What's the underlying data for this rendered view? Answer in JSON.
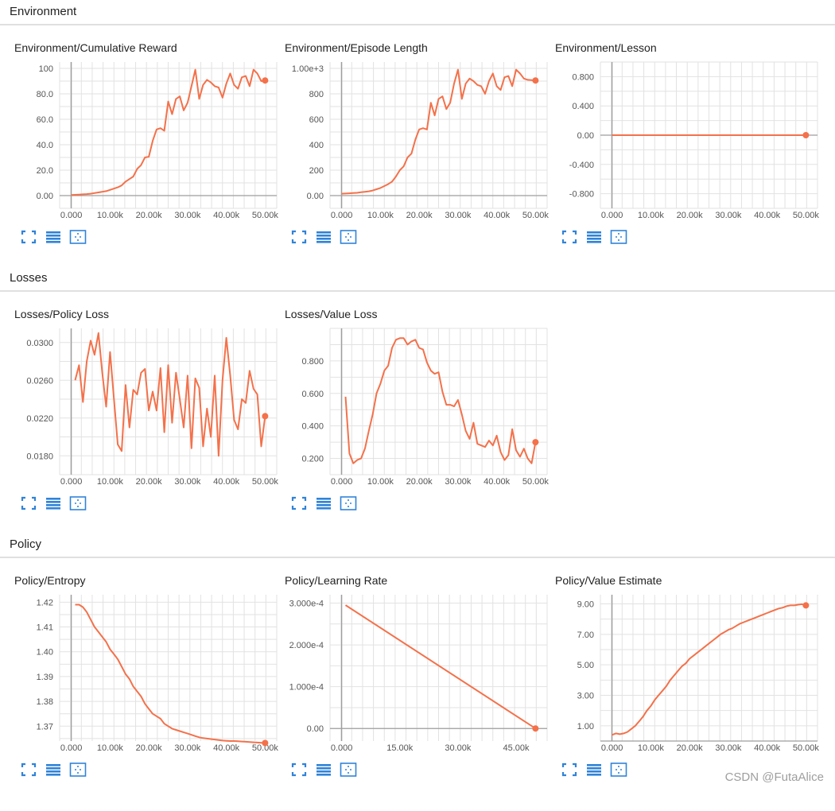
{
  "sections": [
    {
      "label": "Environment"
    },
    {
      "label": "Losses"
    },
    {
      "label": "Policy"
    }
  ],
  "watermark": "CSDN @FutaAlice",
  "colors": {
    "series": "#f4714a",
    "grid": "#e2e2e2",
    "axis": "#9e9e9e",
    "button": "#3083d8",
    "divider": "#e0e0e0"
  },
  "icons": [
    "fullscreen-icon",
    "list-lines-icon",
    "fit-domain-icon"
  ],
  "chart_data": [
    {
      "type": "line",
      "title": "Environment/Cumulative Reward",
      "x": [
        0,
        1000,
        2000,
        3000,
        4000,
        5000,
        6000,
        7000,
        8000,
        9000,
        10000,
        11000,
        12000,
        13000,
        14000,
        15000,
        16000,
        17000,
        18000,
        19000,
        20000,
        21000,
        22000,
        23000,
        24000,
        25000,
        26000,
        27000,
        28000,
        29000,
        30000,
        31000,
        32000,
        33000,
        34000,
        35000,
        36000,
        37000,
        38000,
        39000,
        40000,
        41000,
        42000,
        43000,
        44000,
        45000,
        46000,
        47000,
        48000,
        49000,
        50000
      ],
      "y": [
        0.5,
        0.6,
        0.8,
        1.0,
        1.2,
        1.5,
        2.0,
        2.5,
        3.0,
        3.5,
        4.5,
        5.5,
        6.5,
        8.0,
        11.0,
        13.0,
        15.0,
        21.0,
        24.0,
        30.0,
        30.5,
        43.0,
        52.0,
        53.0,
        51.0,
        74.0,
        64.0,
        76.0,
        78.0,
        67.0,
        73.0,
        86.0,
        99.0,
        76.0,
        87.0,
        91.0,
        89.0,
        86.0,
        85.0,
        77.0,
        88.0,
        96.0,
        87.0,
        84.0,
        93.0,
        94.0,
        86.0,
        99.0,
        96.0,
        90.0,
        90.5
      ],
      "xticks": [
        "0.000",
        "10.00k",
        "20.00k",
        "30.00k",
        "40.00k",
        "50.00k"
      ],
      "xtick_values": [
        0,
        10000,
        20000,
        30000,
        40000,
        50000
      ],
      "yticks": [
        "0.00",
        "20.0",
        "40.0",
        "60.0",
        "80.0",
        "100"
      ],
      "ytick_values": [
        0,
        20,
        40,
        60,
        80,
        100
      ],
      "xlim": [
        -3000,
        53000
      ],
      "ylim": [
        -10,
        105
      ],
      "grid": true
    },
    {
      "type": "line",
      "title": "Environment/Episode Length",
      "x": [
        0,
        1000,
        2000,
        3000,
        4000,
        5000,
        6000,
        7000,
        8000,
        9000,
        10000,
        11000,
        12000,
        13000,
        14000,
        15000,
        16000,
        17000,
        18000,
        19000,
        20000,
        21000,
        22000,
        23000,
        24000,
        25000,
        26000,
        27000,
        28000,
        29000,
        30000,
        31000,
        32000,
        33000,
        34000,
        35000,
        36000,
        37000,
        38000,
        39000,
        40000,
        41000,
        42000,
        43000,
        44000,
        45000,
        46000,
        47000,
        48000,
        49000,
        50000
      ],
      "y": [
        15,
        16,
        18,
        20,
        22,
        26,
        30,
        34,
        40,
        50,
        60,
        75,
        90,
        110,
        150,
        200,
        230,
        300,
        330,
        440,
        520,
        530,
        520,
        730,
        630,
        760,
        780,
        680,
        730,
        880,
        990,
        760,
        880,
        920,
        900,
        870,
        860,
        800,
        900,
        960,
        860,
        830,
        930,
        940,
        860,
        990,
        960,
        920,
        910,
        908,
        905
      ],
      "xticks": [
        "0.000",
        "10.00k",
        "20.00k",
        "30.00k",
        "40.00k",
        "50.00k"
      ],
      "xtick_values": [
        0,
        10000,
        20000,
        30000,
        40000,
        50000
      ],
      "yticks": [
        "0.00",
        "200",
        "400",
        "600",
        "800",
        "1.00e+3"
      ],
      "ytick_values": [
        0,
        200,
        400,
        600,
        800,
        1000
      ],
      "xlim": [
        -3000,
        53000
      ],
      "ylim": [
        -100,
        1050
      ],
      "grid": true
    },
    {
      "type": "line",
      "title": "Environment/Lesson",
      "x": [
        0,
        50000
      ],
      "y": [
        0,
        0
      ],
      "xticks": [
        "0.000",
        "10.00k",
        "20.00k",
        "30.00k",
        "40.00k",
        "50.00k"
      ],
      "xtick_values": [
        0,
        10000,
        20000,
        30000,
        40000,
        50000
      ],
      "yticks": [
        "-0.800",
        "-0.400",
        "0.00",
        "0.400",
        "0.800"
      ],
      "ytick_values": [
        -0.8,
        -0.4,
        0,
        0.4,
        0.8
      ],
      "xlim": [
        -3000,
        53000
      ],
      "ylim": [
        -1.0,
        1.0
      ],
      "grid": true
    },
    {
      "type": "line",
      "title": "Losses/Policy Loss",
      "x": [
        1000,
        2000,
        3000,
        4000,
        5000,
        6000,
        7000,
        8000,
        9000,
        10000,
        11000,
        12000,
        13000,
        14000,
        15000,
        16000,
        17000,
        18000,
        19000,
        20000,
        21000,
        22000,
        23000,
        24000,
        25000,
        26000,
        27000,
        28000,
        29000,
        30000,
        31000,
        32000,
        33000,
        34000,
        35000,
        36000,
        37000,
        38000,
        39000,
        40000,
        41000,
        42000,
        43000,
        44000,
        45000,
        46000,
        47000,
        48000,
        49000,
        50000
      ],
      "y": [
        0.026,
        0.0276,
        0.0237,
        0.028,
        0.0302,
        0.0287,
        0.031,
        0.0268,
        0.0232,
        0.029,
        0.024,
        0.0192,
        0.0185,
        0.0255,
        0.021,
        0.025,
        0.0245,
        0.0268,
        0.0272,
        0.0228,
        0.0248,
        0.0228,
        0.0273,
        0.0205,
        0.0276,
        0.0215,
        0.0268,
        0.024,
        0.021,
        0.0265,
        0.0188,
        0.0262,
        0.0252,
        0.019,
        0.023,
        0.02,
        0.0265,
        0.018,
        0.026,
        0.0305,
        0.0265,
        0.0218,
        0.0208,
        0.024,
        0.0236,
        0.027,
        0.0251,
        0.0245,
        0.019,
        0.0222
      ],
      "xticks": [
        "0.000",
        "10.00k",
        "20.00k",
        "30.00k",
        "40.00k",
        "50.00k"
      ],
      "xtick_values": [
        0,
        10000,
        20000,
        30000,
        40000,
        50000
      ],
      "yticks": [
        "0.0180",
        "0.0220",
        "0.0260",
        "0.0300"
      ],
      "ytick_values": [
        0.018,
        0.022,
        0.026,
        0.03
      ],
      "xlim": [
        -3000,
        53000
      ],
      "ylim": [
        0.016,
        0.0315
      ],
      "grid": true
    },
    {
      "type": "line",
      "title": "Losses/Value Loss",
      "x": [
        1000,
        2000,
        3000,
        4000,
        5000,
        6000,
        7000,
        8000,
        9000,
        10000,
        11000,
        12000,
        13000,
        14000,
        15000,
        16000,
        17000,
        18000,
        19000,
        20000,
        21000,
        22000,
        23000,
        24000,
        25000,
        26000,
        27000,
        28000,
        29000,
        30000,
        31000,
        32000,
        33000,
        34000,
        35000,
        36000,
        37000,
        38000,
        39000,
        40000,
        41000,
        42000,
        43000,
        44000,
        45000,
        46000,
        47000,
        48000,
        49000,
        50000
      ],
      "y": [
        0.58,
        0.23,
        0.17,
        0.19,
        0.2,
        0.26,
        0.37,
        0.47,
        0.6,
        0.66,
        0.74,
        0.77,
        0.88,
        0.93,
        0.94,
        0.94,
        0.9,
        0.92,
        0.93,
        0.88,
        0.87,
        0.79,
        0.74,
        0.72,
        0.73,
        0.61,
        0.53,
        0.53,
        0.52,
        0.56,
        0.47,
        0.37,
        0.32,
        0.42,
        0.29,
        0.28,
        0.27,
        0.31,
        0.28,
        0.34,
        0.24,
        0.19,
        0.22,
        0.38,
        0.25,
        0.21,
        0.26,
        0.2,
        0.17,
        0.3
      ],
      "xticks": [
        "0.000",
        "10.00k",
        "20.00k",
        "30.00k",
        "40.00k",
        "50.00k"
      ],
      "xtick_values": [
        0,
        10000,
        20000,
        30000,
        40000,
        50000
      ],
      "yticks": [
        "0.200",
        "0.400",
        "0.600",
        "0.800"
      ],
      "ytick_values": [
        0.2,
        0.4,
        0.6,
        0.8
      ],
      "xlim": [
        -3000,
        53000
      ],
      "ylim": [
        0.1,
        1.0
      ],
      "grid": true
    },
    {
      "type": "line",
      "title": "Policy/Entropy",
      "x": [
        1000,
        2000,
        3000,
        4000,
        5000,
        6000,
        7000,
        8000,
        9000,
        10000,
        11000,
        12000,
        13000,
        14000,
        15000,
        16000,
        17000,
        18000,
        19000,
        20000,
        21000,
        22000,
        23000,
        24000,
        25000,
        26000,
        27000,
        28000,
        29000,
        30000,
        31000,
        32000,
        33000,
        34000,
        35000,
        36000,
        37000,
        38000,
        39000,
        40000,
        41000,
        42000,
        43000,
        44000,
        45000,
        46000,
        47000,
        48000,
        49000,
        50000
      ],
      "y": [
        1.419,
        1.419,
        1.418,
        1.416,
        1.413,
        1.41,
        1.408,
        1.406,
        1.404,
        1.401,
        1.399,
        1.397,
        1.394,
        1.391,
        1.389,
        1.386,
        1.384,
        1.382,
        1.379,
        1.377,
        1.375,
        1.374,
        1.373,
        1.371,
        1.37,
        1.369,
        1.3685,
        1.368,
        1.3675,
        1.367,
        1.3665,
        1.366,
        1.3655,
        1.3652,
        1.365,
        1.3648,
        1.3646,
        1.3644,
        1.3642,
        1.3641,
        1.364,
        1.364,
        1.3639,
        1.3638,
        1.3637,
        1.3636,
        1.3635,
        1.3634,
        1.3633,
        1.3632
      ],
      "xticks": [
        "0.000",
        "10.00k",
        "20.00k",
        "30.00k",
        "40.00k",
        "50.00k"
      ],
      "xtick_values": [
        0,
        10000,
        20000,
        30000,
        40000,
        50000
      ],
      "yticks": [
        "1.37",
        "1.38",
        "1.39",
        "1.40",
        "1.41",
        "1.42"
      ],
      "ytick_values": [
        1.37,
        1.38,
        1.39,
        1.4,
        1.41,
        1.42
      ],
      "xlim": [
        -3000,
        53000
      ],
      "ylim": [
        1.364,
        1.423
      ],
      "grid": true
    },
    {
      "type": "line",
      "title": "Policy/Learning Rate",
      "x": [
        1000,
        50000
      ],
      "y": [
        0.000295,
        0.0
      ],
      "xticks": [
        "0.000",
        "15.00k",
        "30.00k",
        "45.00k"
      ],
      "xtick_values": [
        0,
        15000,
        30000,
        45000
      ],
      "yticks": [
        "0.00",
        "1.000e-4",
        "2.000e-4",
        "3.000e-4"
      ],
      "ytick_values": [
        0,
        0.0001,
        0.0002,
        0.0003
      ],
      "xlim": [
        -3000,
        53000
      ],
      "ylim": [
        -3e-05,
        0.00032
      ],
      "grid": true
    },
    {
      "type": "line",
      "title": "Policy/Value Estimate",
      "x": [
        0,
        1000,
        2000,
        3000,
        4000,
        5000,
        6000,
        7000,
        8000,
        9000,
        10000,
        11000,
        12000,
        13000,
        14000,
        15000,
        16000,
        17000,
        18000,
        19000,
        20000,
        21000,
        22000,
        23000,
        24000,
        25000,
        26000,
        27000,
        28000,
        29000,
        30000,
        31000,
        32000,
        33000,
        34000,
        35000,
        36000,
        37000,
        38000,
        39000,
        40000,
        41000,
        42000,
        43000,
        44000,
        45000,
        46000,
        47000,
        48000,
        49000,
        50000
      ],
      "y": [
        0.4,
        0.5,
        0.45,
        0.5,
        0.6,
        0.8,
        1.0,
        1.3,
        1.6,
        2.0,
        2.3,
        2.7,
        3.0,
        3.3,
        3.6,
        4.0,
        4.3,
        4.6,
        4.9,
        5.1,
        5.4,
        5.6,
        5.8,
        6.0,
        6.2,
        6.4,
        6.6,
        6.8,
        7.0,
        7.15,
        7.3,
        7.4,
        7.55,
        7.7,
        7.8,
        7.9,
        8.0,
        8.1,
        8.2,
        8.3,
        8.4,
        8.5,
        8.6,
        8.7,
        8.75,
        8.85,
        8.9,
        8.9,
        8.95,
        8.98,
        8.9
      ],
      "xticks": [
        "0.000",
        "10.00k",
        "20.00k",
        "30.00k",
        "40.00k",
        "50.00k"
      ],
      "xtick_values": [
        0,
        10000,
        20000,
        30000,
        40000,
        50000
      ],
      "yticks": [
        "1.00",
        "3.00",
        "5.00",
        "7.00",
        "9.00"
      ],
      "ytick_values": [
        1,
        3,
        5,
        7,
        9
      ],
      "xlim": [
        -3000,
        53000
      ],
      "ylim": [
        0.0,
        9.6
      ],
      "grid": true
    }
  ]
}
